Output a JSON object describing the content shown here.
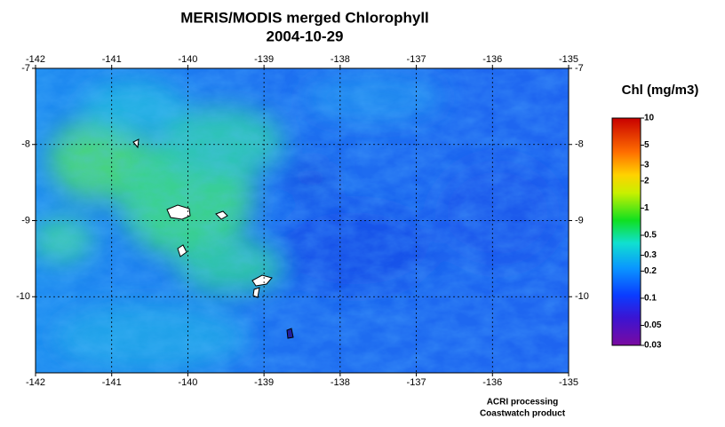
{
  "title": "MERIS/MODIS merged Chlorophyll",
  "date": "2004-10-29",
  "map": {
    "xlim": [
      -142,
      -135
    ],
    "xticks": [
      -142,
      -141,
      -140,
      -139,
      -138,
      -137,
      -136,
      -135
    ],
    "ylim": [
      -7,
      -11
    ],
    "yticks": [
      -7,
      -8,
      -9,
      -10
    ],
    "grid": true
  },
  "colorbar": {
    "label": "Chl (mg/m3)",
    "range": [
      0.03,
      10
    ],
    "log": true,
    "ticks": [
      10,
      5,
      3,
      2,
      1,
      0.5,
      0.3,
      0.2,
      0.1,
      0.05,
      0.03
    ]
  },
  "credits": [
    "ACRI processing",
    "Coastwatch product"
  ]
}
